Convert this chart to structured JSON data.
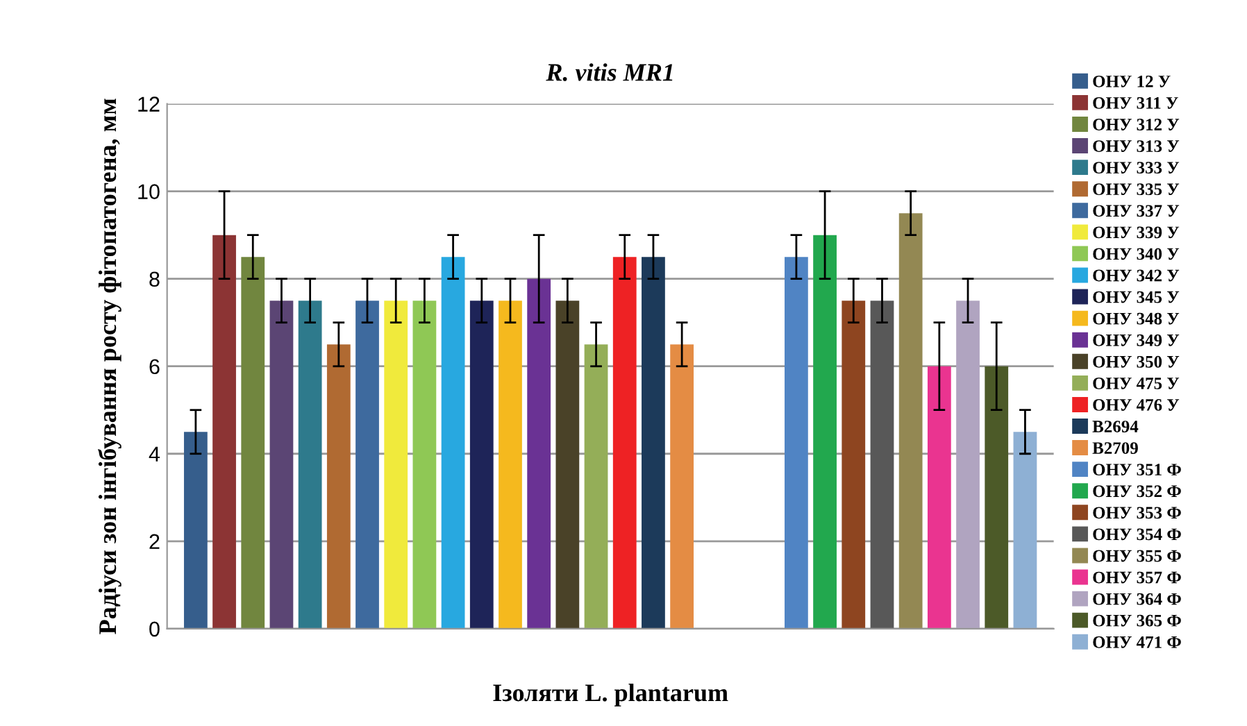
{
  "chart_data": {
    "type": "bar",
    "title": "R. vitis MR1",
    "xlabel": "Ізоляти L. plantarum",
    "ylabel": "Радіуси зон інгібування росту фітопатогена, мм",
    "categories": [
      null,
      null,
      null,
      null,
      null,
      null,
      null,
      null,
      null,
      null,
      null,
      null,
      null,
      null,
      null,
      null,
      null,
      null,
      null,
      null,
      null,
      null,
      null,
      null,
      null,
      null,
      null,
      null,
      null,
      null
    ],
    "series": [
      {
        "name": "ОНУ 12 У",
        "color": "#365e8c",
        "values": [
          4.5,
          null,
          null,
          null,
          null,
          null,
          null,
          null,
          null,
          null,
          null,
          null,
          null,
          null,
          null,
          null,
          null,
          null,
          null,
          null,
          null,
          null,
          null,
          null,
          null,
          null,
          null,
          null,
          null,
          null
        ],
        "errors": [
          0.5,
          null,
          null,
          null,
          null,
          null,
          null,
          null,
          null,
          null,
          null,
          null,
          null,
          null,
          null,
          null,
          null,
          null,
          null,
          null,
          null,
          null,
          null,
          null,
          null,
          null,
          null,
          null,
          null,
          null
        ]
      },
      {
        "name": "ОНУ 311 У",
        "color": "#8c3434",
        "values": [
          null,
          9,
          null,
          null,
          null,
          null,
          null,
          null,
          null,
          null,
          null,
          null,
          null,
          null,
          null,
          null,
          null,
          null,
          null,
          null,
          null,
          null,
          null,
          null,
          null,
          null,
          null,
          null,
          null,
          null
        ],
        "errors": [
          null,
          1,
          null,
          null,
          null,
          null,
          null,
          null,
          null,
          null,
          null,
          null,
          null,
          null,
          null,
          null,
          null,
          null,
          null,
          null,
          null,
          null,
          null,
          null,
          null,
          null,
          null,
          null,
          null,
          null
        ]
      },
      {
        "name": "ОНУ 312 У",
        "color": "#71863f",
        "values": [
          null,
          null,
          8.5,
          null,
          null,
          null,
          null,
          null,
          null,
          null,
          null,
          null,
          null,
          null,
          null,
          null,
          null,
          null,
          null,
          null,
          null,
          null,
          null,
          null,
          null,
          null,
          null,
          null,
          null,
          null
        ],
        "errors": [
          null,
          null,
          0.5,
          null,
          null,
          null,
          null,
          null,
          null,
          null,
          null,
          null,
          null,
          null,
          null,
          null,
          null,
          null,
          null,
          null,
          null,
          null,
          null,
          null,
          null,
          null,
          null,
          null,
          null,
          null
        ]
      },
      {
        "name": "ОНУ 313 У",
        "color": "#5b4574",
        "values": [
          null,
          null,
          null,
          7.5,
          null,
          null,
          null,
          null,
          null,
          null,
          null,
          null,
          null,
          null,
          null,
          null,
          null,
          null,
          null,
          null,
          null,
          null,
          null,
          null,
          null,
          null,
          null,
          null,
          null,
          null
        ],
        "errors": [
          null,
          null,
          null,
          0.5,
          null,
          null,
          null,
          null,
          null,
          null,
          null,
          null,
          null,
          null,
          null,
          null,
          null,
          null,
          null,
          null,
          null,
          null,
          null,
          null,
          null,
          null,
          null,
          null,
          null,
          null
        ]
      },
      {
        "name": "ОНУ 333 У",
        "color": "#2e7a8c",
        "values": [
          null,
          null,
          null,
          null,
          7.5,
          null,
          null,
          null,
          null,
          null,
          null,
          null,
          null,
          null,
          null,
          null,
          null,
          null,
          null,
          null,
          null,
          null,
          null,
          null,
          null,
          null,
          null,
          null,
          null,
          null
        ],
        "errors": [
          null,
          null,
          null,
          null,
          0.5,
          null,
          null,
          null,
          null,
          null,
          null,
          null,
          null,
          null,
          null,
          null,
          null,
          null,
          null,
          null,
          null,
          null,
          null,
          null,
          null,
          null,
          null,
          null,
          null,
          null
        ]
      },
      {
        "name": "ОНУ 335 У",
        "color": "#b06a32",
        "values": [
          null,
          null,
          null,
          null,
          null,
          6.5,
          null,
          null,
          null,
          null,
          null,
          null,
          null,
          null,
          null,
          null,
          null,
          null,
          null,
          null,
          null,
          null,
          null,
          null,
          null,
          null,
          null,
          null,
          null,
          null
        ],
        "errors": [
          null,
          null,
          null,
          null,
          null,
          0.5,
          null,
          null,
          null,
          null,
          null,
          null,
          null,
          null,
          null,
          null,
          null,
          null,
          null,
          null,
          null,
          null,
          null,
          null,
          null,
          null,
          null,
          null,
          null,
          null
        ]
      },
      {
        "name": "ОНУ 337 У",
        "color": "#3e6a9e",
        "values": [
          null,
          null,
          null,
          null,
          null,
          null,
          7.5,
          null,
          null,
          null,
          null,
          null,
          null,
          null,
          null,
          null,
          null,
          null,
          null,
          null,
          null,
          null,
          null,
          null,
          null,
          null,
          null,
          null,
          null,
          null
        ],
        "errors": [
          null,
          null,
          null,
          null,
          null,
          null,
          0.5,
          null,
          null,
          null,
          null,
          null,
          null,
          null,
          null,
          null,
          null,
          null,
          null,
          null,
          null,
          null,
          null,
          null,
          null,
          null,
          null,
          null,
          null,
          null
        ]
      },
      {
        "name": "ОНУ 339 У",
        "color": "#f0ea3c",
        "values": [
          null,
          null,
          null,
          null,
          null,
          null,
          null,
          7.5,
          null,
          null,
          null,
          null,
          null,
          null,
          null,
          null,
          null,
          null,
          null,
          null,
          null,
          null,
          null,
          null,
          null,
          null,
          null,
          null,
          null,
          null
        ],
        "errors": [
          null,
          null,
          null,
          null,
          null,
          null,
          null,
          0.5,
          null,
          null,
          null,
          null,
          null,
          null,
          null,
          null,
          null,
          null,
          null,
          null,
          null,
          null,
          null,
          null,
          null,
          null,
          null,
          null,
          null,
          null
        ]
      },
      {
        "name": "ОНУ 340 У",
        "color": "#8fc855",
        "values": [
          null,
          null,
          null,
          null,
          null,
          null,
          null,
          null,
          7.5,
          null,
          null,
          null,
          null,
          null,
          null,
          null,
          null,
          null,
          null,
          null,
          null,
          null,
          null,
          null,
          null,
          null,
          null,
          null,
          null,
          null
        ],
        "errors": [
          null,
          null,
          null,
          null,
          null,
          null,
          null,
          null,
          0.5,
          null,
          null,
          null,
          null,
          null,
          null,
          null,
          null,
          null,
          null,
          null,
          null,
          null,
          null,
          null,
          null,
          null,
          null,
          null,
          null,
          null
        ]
      },
      {
        "name": "ОНУ 342 У",
        "color": "#28a8e0",
        "values": [
          null,
          null,
          null,
          null,
          null,
          null,
          null,
          null,
          null,
          8.5,
          null,
          null,
          null,
          null,
          null,
          null,
          null,
          null,
          null,
          null,
          null,
          null,
          null,
          null,
          null,
          null,
          null,
          null,
          null,
          null
        ],
        "errors": [
          null,
          null,
          null,
          null,
          null,
          null,
          null,
          null,
          null,
          0.5,
          null,
          null,
          null,
          null,
          null,
          null,
          null,
          null,
          null,
          null,
          null,
          null,
          null,
          null,
          null,
          null,
          null,
          null,
          null,
          null
        ]
      },
      {
        "name": "ОНУ 345 У",
        "color": "#1e2458",
        "values": [
          null,
          null,
          null,
          null,
          null,
          null,
          null,
          null,
          null,
          null,
          7.5,
          null,
          null,
          null,
          null,
          null,
          null,
          null,
          null,
          null,
          null,
          null,
          null,
          null,
          null,
          null,
          null,
          null,
          null,
          null
        ],
        "errors": [
          null,
          null,
          null,
          null,
          null,
          null,
          null,
          null,
          null,
          null,
          0.5,
          null,
          null,
          null,
          null,
          null,
          null,
          null,
          null,
          null,
          null,
          null,
          null,
          null,
          null,
          null,
          null,
          null,
          null,
          null
        ]
      },
      {
        "name": "ОНУ 348 У",
        "color": "#f5b91e",
        "values": [
          null,
          null,
          null,
          null,
          null,
          null,
          null,
          null,
          null,
          null,
          null,
          7.5,
          null,
          null,
          null,
          null,
          null,
          null,
          null,
          null,
          null,
          null,
          null,
          null,
          null,
          null,
          null,
          null,
          null,
          null
        ],
        "errors": [
          null,
          null,
          null,
          null,
          null,
          null,
          null,
          null,
          null,
          null,
          null,
          0.5,
          null,
          null,
          null,
          null,
          null,
          null,
          null,
          null,
          null,
          null,
          null,
          null,
          null,
          null,
          null,
          null,
          null,
          null
        ]
      },
      {
        "name": "ОНУ 349 У",
        "color": "#6a3294",
        "values": [
          null,
          null,
          null,
          null,
          null,
          null,
          null,
          null,
          null,
          null,
          null,
          null,
          8,
          null,
          null,
          null,
          null,
          null,
          null,
          null,
          null,
          null,
          null,
          null,
          null,
          null,
          null,
          null,
          null,
          null
        ],
        "errors": [
          null,
          null,
          null,
          null,
          null,
          null,
          null,
          null,
          null,
          null,
          null,
          null,
          1,
          null,
          null,
          null,
          null,
          null,
          null,
          null,
          null,
          null,
          null,
          null,
          null,
          null,
          null,
          null,
          null,
          null
        ]
      },
      {
        "name": "ОНУ 350 У",
        "color": "#4a4228",
        "values": [
          null,
          null,
          null,
          null,
          null,
          null,
          null,
          null,
          null,
          null,
          null,
          null,
          null,
          7.5,
          null,
          null,
          null,
          null,
          null,
          null,
          null,
          null,
          null,
          null,
          null,
          null,
          null,
          null,
          null,
          null
        ],
        "errors": [
          null,
          null,
          null,
          null,
          null,
          null,
          null,
          null,
          null,
          null,
          null,
          null,
          null,
          0.5,
          null,
          null,
          null,
          null,
          null,
          null,
          null,
          null,
          null,
          null,
          null,
          null,
          null,
          null,
          null,
          null
        ]
      },
      {
        "name": "ОНУ 475 У",
        "color": "#94ae58",
        "values": [
          null,
          null,
          null,
          null,
          null,
          null,
          null,
          null,
          null,
          null,
          null,
          null,
          null,
          null,
          6.5,
          null,
          null,
          null,
          null,
          null,
          null,
          null,
          null,
          null,
          null,
          null,
          null,
          null,
          null,
          null
        ],
        "errors": [
          null,
          null,
          null,
          null,
          null,
          null,
          null,
          null,
          null,
          null,
          null,
          null,
          null,
          null,
          0.5,
          null,
          null,
          null,
          null,
          null,
          null,
          null,
          null,
          null,
          null,
          null,
          null,
          null,
          null,
          null
        ]
      },
      {
        "name": "ОНУ 476 У",
        "color": "#ee2224",
        "values": [
          null,
          null,
          null,
          null,
          null,
          null,
          null,
          null,
          null,
          null,
          null,
          null,
          null,
          null,
          null,
          8.5,
          null,
          null,
          null,
          null,
          null,
          null,
          null,
          null,
          null,
          null,
          null,
          null,
          null,
          null
        ],
        "errors": [
          null,
          null,
          null,
          null,
          null,
          null,
          null,
          null,
          null,
          null,
          null,
          null,
          null,
          null,
          null,
          0.5,
          null,
          null,
          null,
          null,
          null,
          null,
          null,
          null,
          null,
          null,
          null,
          null,
          null,
          null
        ]
      },
      {
        "name": "B2694",
        "color": "#1c3a5a",
        "values": [
          null,
          null,
          null,
          null,
          null,
          null,
          null,
          null,
          null,
          null,
          null,
          null,
          null,
          null,
          null,
          null,
          8.5,
          null,
          null,
          null,
          null,
          null,
          null,
          null,
          null,
          null,
          null,
          null,
          null,
          null
        ],
        "errors": [
          null,
          null,
          null,
          null,
          null,
          null,
          null,
          null,
          null,
          null,
          null,
          null,
          null,
          null,
          null,
          null,
          0.5,
          null,
          null,
          null,
          null,
          null,
          null,
          null,
          null,
          null,
          null,
          null,
          null,
          null
        ]
      },
      {
        "name": "B2709",
        "color": "#e48c44",
        "values": [
          null,
          null,
          null,
          null,
          null,
          null,
          null,
          null,
          null,
          null,
          null,
          null,
          null,
          null,
          null,
          null,
          null,
          6.5,
          null,
          null,
          null,
          null,
          null,
          null,
          null,
          null,
          null,
          null,
          null,
          null
        ],
        "errors": [
          null,
          null,
          null,
          null,
          null,
          null,
          null,
          null,
          null,
          null,
          null,
          null,
          null,
          null,
          null,
          null,
          null,
          0.5,
          null,
          null,
          null,
          null,
          null,
          null,
          null,
          null,
          null,
          null,
          null,
          null
        ]
      },
      {
        "name": "ОНУ 351 Ф",
        "color": "#5084c4",
        "values": [
          null,
          null,
          null,
          null,
          null,
          null,
          null,
          null,
          null,
          null,
          null,
          null,
          null,
          null,
          null,
          null,
          null,
          null,
          null,
          null,
          null,
          8.5,
          null,
          null,
          null,
          null,
          null,
          null,
          null,
          null
        ],
        "errors": [
          null,
          null,
          null,
          null,
          null,
          null,
          null,
          null,
          null,
          null,
          null,
          null,
          null,
          null,
          null,
          null,
          null,
          null,
          null,
          null,
          null,
          0.5,
          null,
          null,
          null,
          null,
          null,
          null,
          null,
          null
        ]
      },
      {
        "name": "ОНУ 352 Ф",
        "color": "#22a84e",
        "values": [
          null,
          null,
          null,
          null,
          null,
          null,
          null,
          null,
          null,
          null,
          null,
          null,
          null,
          null,
          null,
          null,
          null,
          null,
          null,
          null,
          null,
          null,
          9,
          null,
          null,
          null,
          null,
          null,
          null,
          null
        ],
        "errors": [
          null,
          null,
          null,
          null,
          null,
          null,
          null,
          null,
          null,
          null,
          null,
          null,
          null,
          null,
          null,
          null,
          null,
          null,
          null,
          null,
          null,
          null,
          1,
          null,
          null,
          null,
          null,
          null,
          null,
          null
        ]
      },
      {
        "name": "ОНУ 353 Ф",
        "color": "#8e4520",
        "values": [
          null,
          null,
          null,
          null,
          null,
          null,
          null,
          null,
          null,
          null,
          null,
          null,
          null,
          null,
          null,
          null,
          null,
          null,
          null,
          null,
          null,
          null,
          null,
          7.5,
          null,
          null,
          null,
          null,
          null,
          null
        ],
        "errors": [
          null,
          null,
          null,
          null,
          null,
          null,
          null,
          null,
          null,
          null,
          null,
          null,
          null,
          null,
          null,
          null,
          null,
          null,
          null,
          null,
          null,
          null,
          null,
          0.5,
          null,
          null,
          null,
          null,
          null,
          null
        ]
      },
      {
        "name": "ОНУ 354 Ф",
        "color": "#585858",
        "values": [
          null,
          null,
          null,
          null,
          null,
          null,
          null,
          null,
          null,
          null,
          null,
          null,
          null,
          null,
          null,
          null,
          null,
          null,
          null,
          null,
          null,
          null,
          null,
          null,
          7.5,
          null,
          null,
          null,
          null,
          null
        ],
        "errors": [
          null,
          null,
          null,
          null,
          null,
          null,
          null,
          null,
          null,
          null,
          null,
          null,
          null,
          null,
          null,
          null,
          null,
          null,
          null,
          null,
          null,
          null,
          null,
          null,
          0.5,
          null,
          null,
          null,
          null,
          null
        ]
      },
      {
        "name": "ОНУ 355 Ф",
        "color": "#938853",
        "values": [
          null,
          null,
          null,
          null,
          null,
          null,
          null,
          null,
          null,
          null,
          null,
          null,
          null,
          null,
          null,
          null,
          null,
          null,
          null,
          null,
          null,
          null,
          null,
          null,
          null,
          9.5,
          null,
          null,
          null,
          null
        ],
        "errors": [
          null,
          null,
          null,
          null,
          null,
          null,
          null,
          null,
          null,
          null,
          null,
          null,
          null,
          null,
          null,
          null,
          null,
          null,
          null,
          null,
          null,
          null,
          null,
          null,
          null,
          0.5,
          null,
          null,
          null,
          null
        ]
      },
      {
        "name": "ОНУ 357 Ф",
        "color": "#ea3490",
        "values": [
          null,
          null,
          null,
          null,
          null,
          null,
          null,
          null,
          null,
          null,
          null,
          null,
          null,
          null,
          null,
          null,
          null,
          null,
          null,
          null,
          null,
          null,
          null,
          null,
          null,
          null,
          6,
          null,
          null,
          null
        ],
        "errors": [
          null,
          null,
          null,
          null,
          null,
          null,
          null,
          null,
          null,
          null,
          null,
          null,
          null,
          null,
          null,
          null,
          null,
          null,
          null,
          null,
          null,
          null,
          null,
          null,
          null,
          null,
          1,
          null,
          null,
          null
        ]
      },
      {
        "name": "ОНУ 364 Ф",
        "color": "#b0a4c0",
        "values": [
          null,
          null,
          null,
          null,
          null,
          null,
          null,
          null,
          null,
          null,
          null,
          null,
          null,
          null,
          null,
          null,
          null,
          null,
          null,
          null,
          null,
          null,
          null,
          null,
          null,
          null,
          null,
          7.5,
          null,
          null
        ],
        "errors": [
          null,
          null,
          null,
          null,
          null,
          null,
          null,
          null,
          null,
          null,
          null,
          null,
          null,
          null,
          null,
          null,
          null,
          null,
          null,
          null,
          null,
          null,
          null,
          null,
          null,
          null,
          null,
          0.5,
          null,
          null
        ]
      },
      {
        "name": "ОНУ 365 Ф",
        "color": "#4c5a28",
        "values": [
          null,
          null,
          null,
          null,
          null,
          null,
          null,
          null,
          null,
          null,
          null,
          null,
          null,
          null,
          null,
          null,
          null,
          null,
          null,
          null,
          null,
          null,
          null,
          null,
          null,
          null,
          null,
          null,
          6,
          null
        ],
        "errors": [
          null,
          null,
          null,
          null,
          null,
          null,
          null,
          null,
          null,
          null,
          null,
          null,
          null,
          null,
          null,
          null,
          null,
          null,
          null,
          null,
          null,
          null,
          null,
          null,
          null,
          null,
          null,
          null,
          1,
          null
        ]
      },
      {
        "name": "ОНУ 471 Ф",
        "color": "#8eb0d4",
        "values": [
          null,
          null,
          null,
          null,
          null,
          null,
          null,
          null,
          null,
          null,
          null,
          null,
          null,
          null,
          null,
          null,
          null,
          null,
          null,
          null,
          null,
          null,
          null,
          null,
          null,
          null,
          null,
          null,
          null,
          4.5
        ],
        "errors": [
          null,
          null,
          null,
          null,
          null,
          null,
          null,
          null,
          null,
          null,
          null,
          null,
          null,
          null,
          null,
          null,
          null,
          null,
          null,
          null,
          null,
          null,
          null,
          null,
          null,
          null,
          null,
          null,
          null,
          0.5
        ]
      }
    ],
    "ylim": [
      0,
      12
    ],
    "yticks": [
      0,
      2,
      4,
      6,
      8,
      10,
      12
    ],
    "grid": "y",
    "legend": "right"
  }
}
